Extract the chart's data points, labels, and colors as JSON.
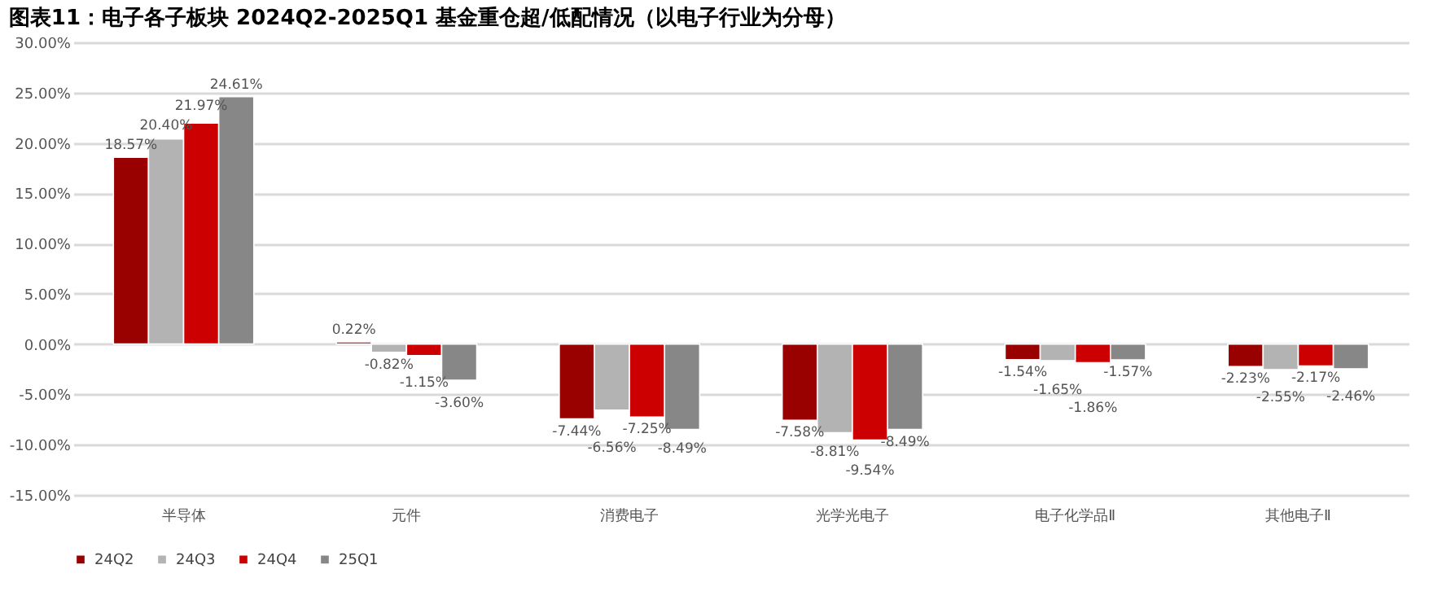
{
  "chart_data": {
    "type": "bar",
    "title": "图表11：电子各子板块 2024Q2-2025Q1 基金重仓超/低配情况（以电子行业为分母）",
    "categories": [
      "半导体",
      "元件",
      "消费电子",
      "光学光电子",
      "电子化学品Ⅱ",
      "其他电子Ⅱ"
    ],
    "series": [
      {
        "name": "24Q2",
        "color": "#990000",
        "values": [
          18.57,
          0.22,
          -7.44,
          -7.58,
          -1.54,
          -2.23
        ],
        "value_labels": [
          "18.57%",
          "0.22%",
          "-7.44%",
          "-7.58%",
          "-1.54%",
          "-2.23%"
        ]
      },
      {
        "name": "24Q3",
        "color": "#b3b3b3",
        "values": [
          20.4,
          -0.82,
          -6.56,
          -8.81,
          -1.65,
          -2.55
        ],
        "value_labels": [
          "20.40%",
          "-0.82%",
          "-6.56%",
          "-8.81%",
          "-1.65%",
          "-2.55%"
        ]
      },
      {
        "name": "24Q4",
        "color": "#cc0000",
        "values": [
          21.97,
          -1.15,
          -7.25,
          -9.54,
          -1.86,
          -2.17
        ],
        "value_labels": [
          "21.97%",
          "-1.15%",
          "-7.25%",
          "-9.54%",
          "-1.86%",
          "-2.17%"
        ]
      },
      {
        "name": "25Q1",
        "color": "#878787",
        "values": [
          24.61,
          -3.6,
          -8.49,
          -8.49,
          -1.57,
          -2.46
        ],
        "value_labels": [
          "24.61%",
          "-3.60%",
          "-8.49%",
          "-8.49%",
          "-1.57%",
          "-2.46%"
        ]
      }
    ],
    "ylim": [
      -15,
      30
    ],
    "yticks": [
      {
        "value": -15,
        "label": "-15.00%"
      },
      {
        "value": -10,
        "label": "-10.00%"
      },
      {
        "value": -5,
        "label": "-5.00%"
      },
      {
        "value": 0,
        "label": "0.00%"
      },
      {
        "value": 5,
        "label": "5.00%"
      },
      {
        "value": 10,
        "label": "10.00%"
      },
      {
        "value": 15,
        "label": "15.00%"
      },
      {
        "value": 20,
        "label": "20.00%"
      },
      {
        "value": 25,
        "label": "25.00%"
      },
      {
        "value": 30,
        "label": "30.00%"
      }
    ],
    "grid": "y",
    "legend": "bottom"
  }
}
